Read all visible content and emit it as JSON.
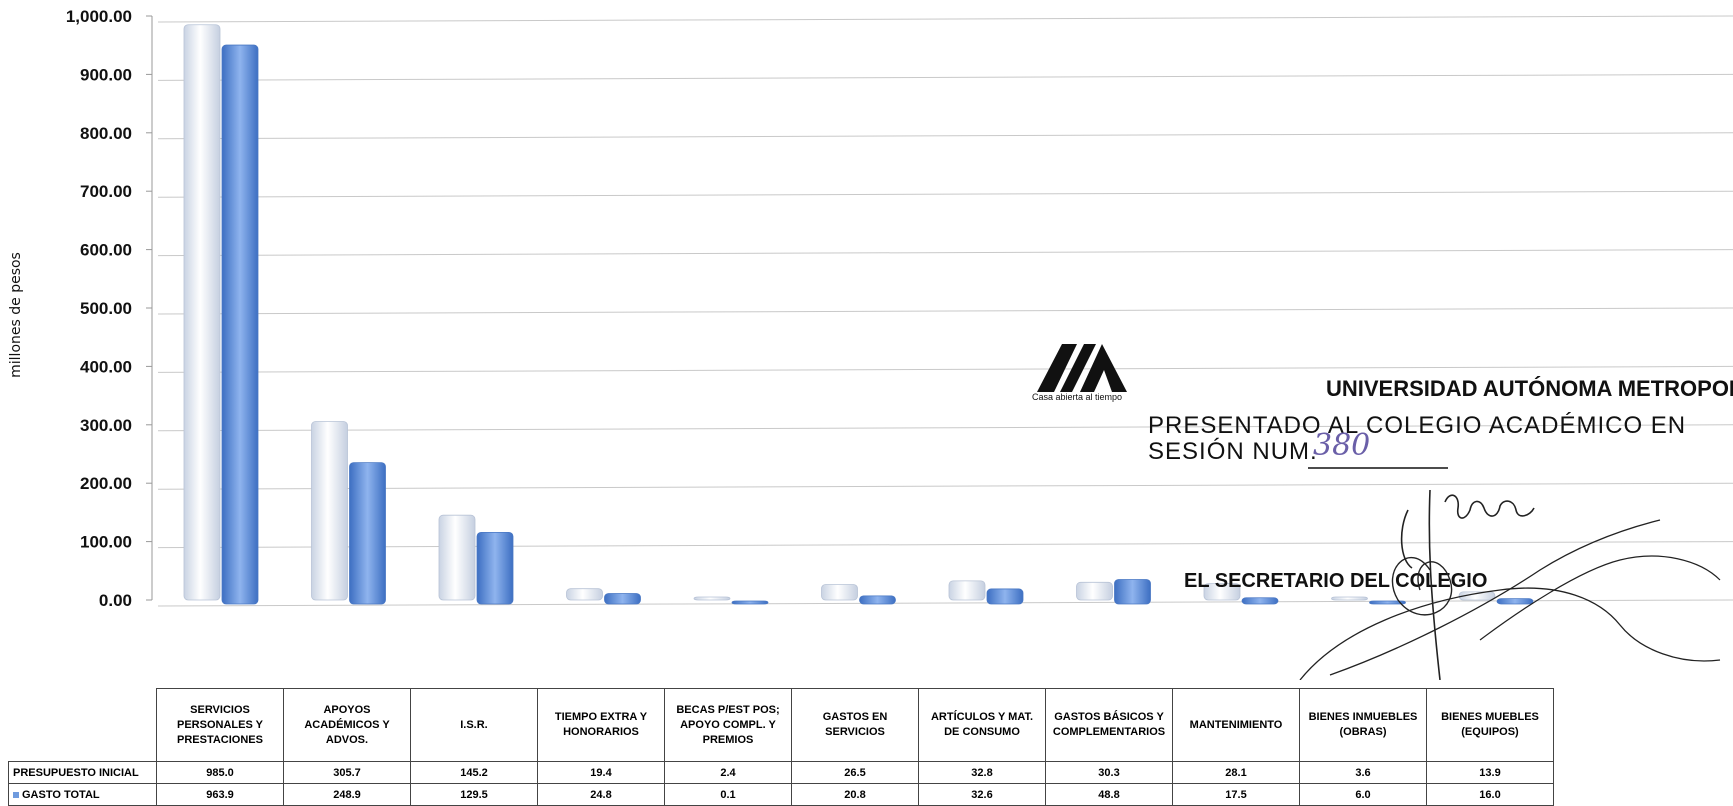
{
  "chart_data": {
    "type": "bar",
    "title": "",
    "ylabel": "millones de pesos",
    "xlabel": "",
    "ylim": [
      0,
      1000
    ],
    "yticks": [
      "1,000.00",
      "900.00",
      "800.00",
      "700.00",
      "600.00",
      "500.00",
      "400.00",
      "300.00",
      "200.00",
      "100.00",
      "0.00"
    ],
    "grid": true,
    "legend": "table",
    "categories": [
      "SERVICIOS PERSONALES Y PRESTACIONES",
      "APOYOS ACADÉMICOS Y ADVOS.",
      "I.S.R.",
      "TIEMPO EXTRA Y HONORARIOS",
      "BECAS P/EST POS; APOYO COMPL. Y PREMIOS",
      "GASTOS EN SERVICIOS",
      "ARTÍCULOS Y MAT. DE CONSUMO",
      "GASTOS BÁSICOS Y COMPLEMENTARIOS",
      "MANTENIMIENTO",
      "BIENES INMUEBLES (OBRAS)",
      "BIENES MUEBLES (EQUIPOS)"
    ],
    "series": [
      {
        "name": "PRESUPUESTO INICIAL",
        "color": "#e9eef6",
        "values": [
          985.0,
          305.7,
          145.2,
          19.4,
          2.4,
          26.5,
          32.8,
          30.3,
          28.1,
          3.6,
          13.9
        ],
        "labels": [
          "985.0",
          "305.7",
          "145.2",
          "19.4",
          "2.4",
          "26.5",
          "32.8",
          "30.3",
          "28.1",
          "3.6",
          "13.9"
        ]
      },
      {
        "name": "GASTO TOTAL",
        "color": "#5f8fd8",
        "values": [
          963.9,
          248.9,
          129.5,
          24.8,
          0.1,
          20.8,
          32.6,
          48.8,
          17.5,
          6.0,
          16.0
        ],
        "labels": [
          "963.9",
          "248.9",
          "129.5",
          "24.8",
          "0.1",
          "20.8",
          "32.6",
          "48.8",
          "17.5",
          "6.0",
          "16.0"
        ]
      }
    ]
  },
  "stamp": {
    "motto": "Casa abierta al tiempo",
    "university": "UNIVERSIDAD AUTÓNOMA METROPOLIT",
    "presented": "PRESENTADO AL COLEGIO ACADÉMICO EN",
    "session": "SESIÓN NUM.",
    "session_number": "380",
    "secretary": "EL SECRETARIO DEL COLEGIO"
  }
}
